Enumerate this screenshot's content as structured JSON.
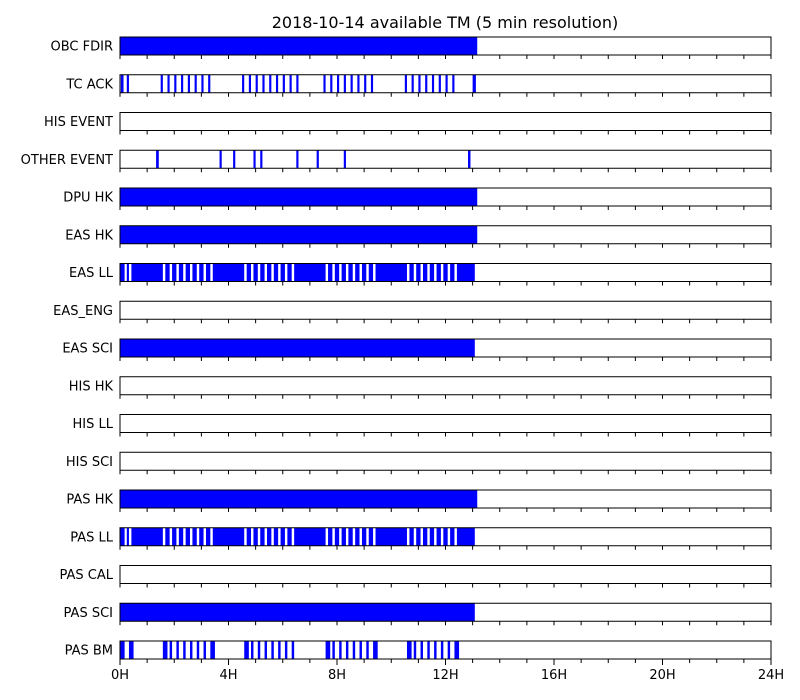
{
  "chart_data": {
    "type": "timeline",
    "title": "2018-10-14 available TM (5 min resolution)",
    "x_unit": "hours",
    "xlim": [
      0,
      24
    ],
    "xticks": [
      0,
      4,
      8,
      12,
      16,
      20,
      24
    ],
    "xtick_labels": [
      "0H",
      "4H",
      "8H",
      "12H",
      "16H",
      "20H",
      "24H"
    ],
    "minor_tick_step_hours": 1,
    "bar_color": "#0000ff",
    "rows": [
      {
        "label": "OBC FDIR",
        "intervals": [
          [
            0,
            13.17
          ]
        ]
      },
      {
        "label": "TC ACK",
        "intervals": [
          [
            0.03,
            0.13
          ],
          [
            0.25,
            0.33
          ],
          [
            1.5,
            1.58
          ],
          [
            1.75,
            1.83
          ],
          [
            2.0,
            2.08
          ],
          [
            2.25,
            2.33
          ],
          [
            2.5,
            2.58
          ],
          [
            2.75,
            2.83
          ],
          [
            3.0,
            3.08
          ],
          [
            3.25,
            3.33
          ],
          [
            4.5,
            4.58
          ],
          [
            4.75,
            4.83
          ],
          [
            5.0,
            5.08
          ],
          [
            5.25,
            5.33
          ],
          [
            5.5,
            5.58
          ],
          [
            5.75,
            5.83
          ],
          [
            6.0,
            6.08
          ],
          [
            6.25,
            6.33
          ],
          [
            6.5,
            6.58
          ],
          [
            7.5,
            7.58
          ],
          [
            7.75,
            7.83
          ],
          [
            8.0,
            8.08
          ],
          [
            8.25,
            8.33
          ],
          [
            8.5,
            8.58
          ],
          [
            8.75,
            8.83
          ],
          [
            9.0,
            9.08
          ],
          [
            9.25,
            9.33
          ],
          [
            10.5,
            10.58
          ],
          [
            10.75,
            10.83
          ],
          [
            11.0,
            11.08
          ],
          [
            11.25,
            11.33
          ],
          [
            11.5,
            11.58
          ],
          [
            11.75,
            11.83
          ],
          [
            12.0,
            12.08
          ],
          [
            12.25,
            12.33
          ],
          [
            13.0,
            13.12
          ]
        ]
      },
      {
        "label": "HIS EVENT",
        "intervals": []
      },
      {
        "label": "OTHER EVENT",
        "intervals": [
          [
            1.33,
            1.43
          ],
          [
            3.67,
            3.75
          ],
          [
            4.17,
            4.25
          ],
          [
            4.92,
            5.0
          ],
          [
            5.17,
            5.25
          ],
          [
            6.5,
            6.58
          ],
          [
            7.25,
            7.33
          ],
          [
            8.25,
            8.33
          ],
          [
            12.83,
            12.92
          ]
        ]
      },
      {
        "label": "DPU HK",
        "intervals": [
          [
            0,
            13.17
          ]
        ]
      },
      {
        "label": "EAS HK",
        "intervals": [
          [
            0,
            13.17
          ]
        ]
      },
      {
        "label": "EAS LL",
        "intervals": [
          [
            0,
            0.17
          ],
          [
            0.25,
            0.33
          ],
          [
            0.42,
            1.58
          ],
          [
            1.67,
            1.83
          ],
          [
            1.92,
            2.08
          ],
          [
            2.17,
            2.33
          ],
          [
            2.42,
            2.58
          ],
          [
            2.67,
            2.83
          ],
          [
            2.92,
            3.08
          ],
          [
            3.17,
            3.33
          ],
          [
            3.42,
            4.58
          ],
          [
            4.67,
            4.83
          ],
          [
            4.92,
            5.08
          ],
          [
            5.17,
            5.33
          ],
          [
            5.42,
            5.58
          ],
          [
            5.67,
            5.83
          ],
          [
            5.92,
            6.08
          ],
          [
            6.17,
            6.33
          ],
          [
            6.42,
            7.58
          ],
          [
            7.67,
            7.83
          ],
          [
            7.92,
            8.08
          ],
          [
            8.17,
            8.33
          ],
          [
            8.42,
            8.58
          ],
          [
            8.67,
            8.83
          ],
          [
            8.92,
            9.08
          ],
          [
            9.17,
            9.33
          ],
          [
            9.42,
            10.58
          ],
          [
            10.67,
            10.83
          ],
          [
            10.92,
            11.08
          ],
          [
            11.17,
            11.33
          ],
          [
            11.42,
            11.58
          ],
          [
            11.67,
            11.83
          ],
          [
            11.92,
            12.08
          ],
          [
            12.17,
            12.33
          ],
          [
            12.42,
            13.08
          ]
        ]
      },
      {
        "label": "EAS_ENG",
        "intervals": []
      },
      {
        "label": "EAS SCI",
        "intervals": [
          [
            0,
            13.08
          ]
        ]
      },
      {
        "label": "HIS HK",
        "intervals": []
      },
      {
        "label": "HIS LL",
        "intervals": []
      },
      {
        "label": "HIS SCI",
        "intervals": []
      },
      {
        "label": "PAS HK",
        "intervals": [
          [
            0,
            13.17
          ]
        ]
      },
      {
        "label": "PAS LL",
        "intervals": [
          [
            0,
            0.17
          ],
          [
            0.25,
            0.33
          ],
          [
            0.42,
            1.58
          ],
          [
            1.67,
            1.83
          ],
          [
            1.92,
            2.08
          ],
          [
            2.17,
            2.33
          ],
          [
            2.42,
            2.58
          ],
          [
            2.67,
            2.83
          ],
          [
            2.92,
            3.08
          ],
          [
            3.17,
            3.33
          ],
          [
            3.42,
            4.58
          ],
          [
            4.67,
            4.83
          ],
          [
            4.92,
            5.08
          ],
          [
            5.17,
            5.33
          ],
          [
            5.42,
            5.58
          ],
          [
            5.67,
            5.83
          ],
          [
            5.92,
            6.08
          ],
          [
            6.17,
            6.33
          ],
          [
            6.42,
            7.58
          ],
          [
            7.67,
            7.83
          ],
          [
            7.92,
            8.08
          ],
          [
            8.17,
            8.33
          ],
          [
            8.42,
            8.58
          ],
          [
            8.67,
            8.83
          ],
          [
            8.92,
            9.08
          ],
          [
            9.17,
            9.33
          ],
          [
            9.42,
            10.58
          ],
          [
            10.67,
            10.83
          ],
          [
            10.92,
            11.08
          ],
          [
            11.17,
            11.33
          ],
          [
            11.42,
            11.58
          ],
          [
            11.67,
            11.83
          ],
          [
            11.92,
            12.08
          ],
          [
            12.17,
            12.33
          ],
          [
            12.42,
            13.08
          ]
        ]
      },
      {
        "label": "PAS CAL",
        "intervals": []
      },
      {
        "label": "PAS SCI",
        "intervals": [
          [
            0,
            13.08
          ]
        ]
      },
      {
        "label": "PAS BM",
        "intervals": [
          [
            0,
            0.17
          ],
          [
            0.33,
            0.5
          ],
          [
            1.58,
            1.75
          ],
          [
            1.83,
            1.92
          ],
          [
            2.08,
            2.17
          ],
          [
            2.33,
            2.42
          ],
          [
            2.58,
            2.67
          ],
          [
            2.83,
            2.92
          ],
          [
            3.08,
            3.17
          ],
          [
            3.33,
            3.5
          ],
          [
            4.58,
            4.75
          ],
          [
            4.83,
            4.92
          ],
          [
            5.08,
            5.17
          ],
          [
            5.33,
            5.42
          ],
          [
            5.58,
            5.67
          ],
          [
            5.83,
            5.92
          ],
          [
            6.08,
            6.17
          ],
          [
            6.33,
            6.42
          ],
          [
            7.58,
            7.75
          ],
          [
            7.83,
            7.92
          ],
          [
            8.08,
            8.17
          ],
          [
            8.33,
            8.42
          ],
          [
            8.58,
            8.67
          ],
          [
            8.83,
            8.92
          ],
          [
            9.08,
            9.17
          ],
          [
            9.33,
            9.5
          ],
          [
            10.58,
            10.75
          ],
          [
            10.83,
            10.92
          ],
          [
            11.08,
            11.17
          ],
          [
            11.33,
            11.42
          ],
          [
            11.58,
            11.67
          ],
          [
            11.83,
            11.92
          ],
          [
            12.08,
            12.17
          ],
          [
            12.33,
            12.5
          ]
        ]
      }
    ]
  }
}
